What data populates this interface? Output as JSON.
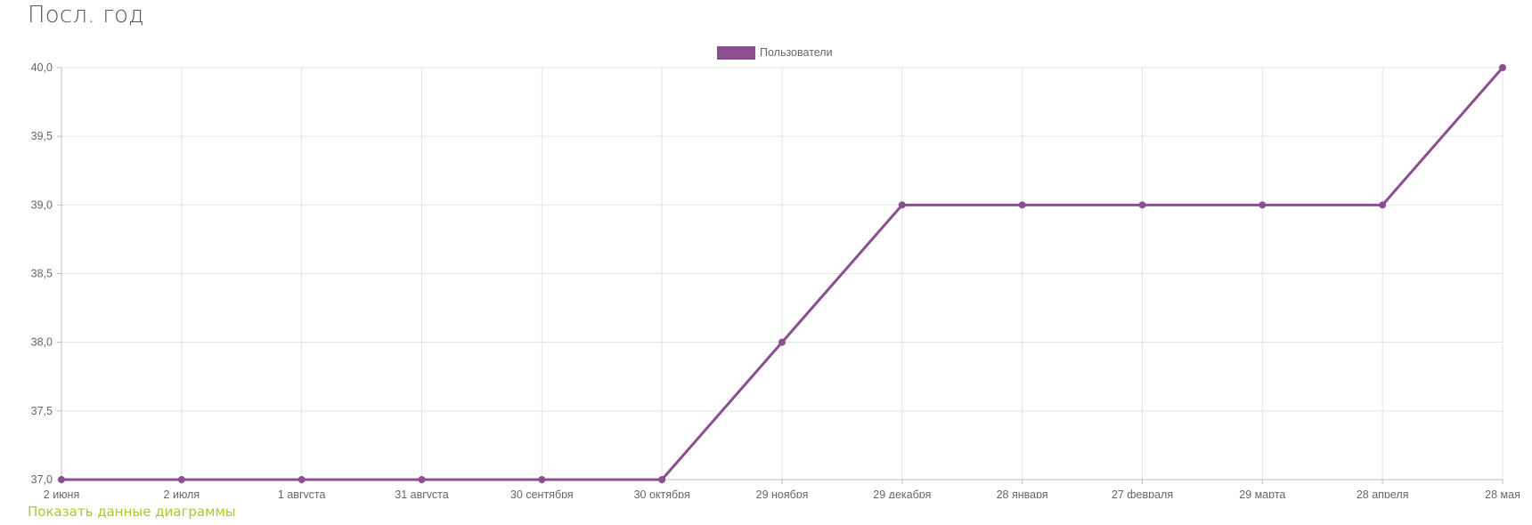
{
  "header": {
    "title": "Посл. год"
  },
  "footer": {
    "show_data_label": "Показать данные диаграммы"
  },
  "colors": {
    "series": "#8a4f8f",
    "grid": "#e3e3e3",
    "axis": "#bdbdbd",
    "link": "#b5c42a"
  },
  "chart_data": {
    "type": "line",
    "title": "",
    "xlabel": "",
    "ylabel": "",
    "categories": [
      "2 июня",
      "2 июля",
      "1 августа",
      "31 августа",
      "30 сентября",
      "30 октября",
      "29 ноября",
      "29 декабря",
      "28 января",
      "27 февраля",
      "29 марта",
      "28 апреля",
      "28 мая"
    ],
    "series": [
      {
        "name": "Пользователи",
        "values": [
          37,
          37,
          37,
          37,
          37,
          37,
          38,
          39,
          39,
          39,
          39,
          39,
          40
        ]
      }
    ],
    "ylim": [
      37,
      40
    ],
    "yticks": [
      "37,0",
      "37,5",
      "38,0",
      "38,5",
      "39,0",
      "39,5",
      "40,0"
    ],
    "grid": true,
    "legend": "top-center"
  }
}
